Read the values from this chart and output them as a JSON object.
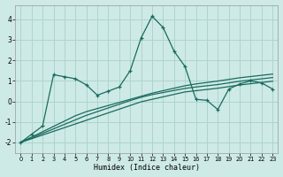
{
  "xlabel": "Humidex (Indice chaleur)",
  "xlim": [
    -0.5,
    23.5
  ],
  "ylim": [
    -2.5,
    4.7
  ],
  "xticks": [
    0,
    1,
    2,
    3,
    4,
    5,
    6,
    7,
    8,
    9,
    10,
    11,
    12,
    13,
    14,
    15,
    16,
    17,
    18,
    19,
    20,
    21,
    22,
    23
  ],
  "yticks": [
    -2,
    -1,
    0,
    1,
    2,
    3,
    4
  ],
  "bg_color": "#ceeae6",
  "grid_color": "#aed4ce",
  "line_color": "#1a6b5e",
  "line1_x": [
    0,
    1,
    2,
    3,
    4,
    5,
    6,
    7,
    8,
    9,
    10,
    11,
    12,
    13,
    14,
    15,
    16,
    17,
    18,
    19,
    20,
    21,
    22,
    23
  ],
  "line1_y": [
    -2.0,
    -1.6,
    -1.2,
    1.3,
    1.2,
    1.1,
    0.8,
    0.3,
    0.5,
    0.7,
    1.5,
    3.1,
    4.15,
    3.6,
    2.45,
    1.7,
    0.1,
    0.05,
    -0.4,
    0.6,
    0.85,
    1.0,
    0.9,
    0.6
  ],
  "line2_x": [
    0,
    1,
    2,
    3,
    4,
    5,
    6,
    7,
    8,
    9,
    10,
    11,
    12,
    13,
    14,
    15,
    16,
    17,
    18,
    19,
    20,
    21,
    22,
    23
  ],
  "line2_y": [
    -2.0,
    -1.82,
    -1.64,
    -1.46,
    -1.28,
    -1.1,
    -0.92,
    -0.74,
    -0.56,
    -0.38,
    -0.2,
    -0.02,
    0.1,
    0.22,
    0.34,
    0.46,
    0.52,
    0.58,
    0.64,
    0.72,
    0.8,
    0.86,
    0.92,
    0.98
  ],
  "line3_x": [
    0,
    1,
    2,
    3,
    4,
    5,
    6,
    7,
    8,
    9,
    10,
    11,
    12,
    13,
    14,
    15,
    16,
    17,
    18,
    19,
    20,
    21,
    22,
    23
  ],
  "line3_y": [
    -2.0,
    -1.78,
    -1.56,
    -1.34,
    -1.12,
    -0.9,
    -0.68,
    -0.5,
    -0.32,
    -0.14,
    0.04,
    0.2,
    0.33,
    0.43,
    0.53,
    0.63,
    0.7,
    0.76,
    0.82,
    0.9,
    0.98,
    1.04,
    1.1,
    1.16
  ],
  "line4_x": [
    0,
    1,
    2,
    3,
    4,
    5,
    6,
    7,
    8,
    9,
    10,
    11,
    12,
    13,
    14,
    15,
    16,
    17,
    18,
    19,
    20,
    21,
    22,
    23
  ],
  "line4_y": [
    -2.0,
    -1.74,
    -1.48,
    -1.22,
    -0.96,
    -0.7,
    -0.5,
    -0.35,
    -0.2,
    -0.05,
    0.1,
    0.25,
    0.4,
    0.52,
    0.64,
    0.76,
    0.85,
    0.92,
    0.99,
    1.07,
    1.15,
    1.21,
    1.27,
    1.33
  ]
}
